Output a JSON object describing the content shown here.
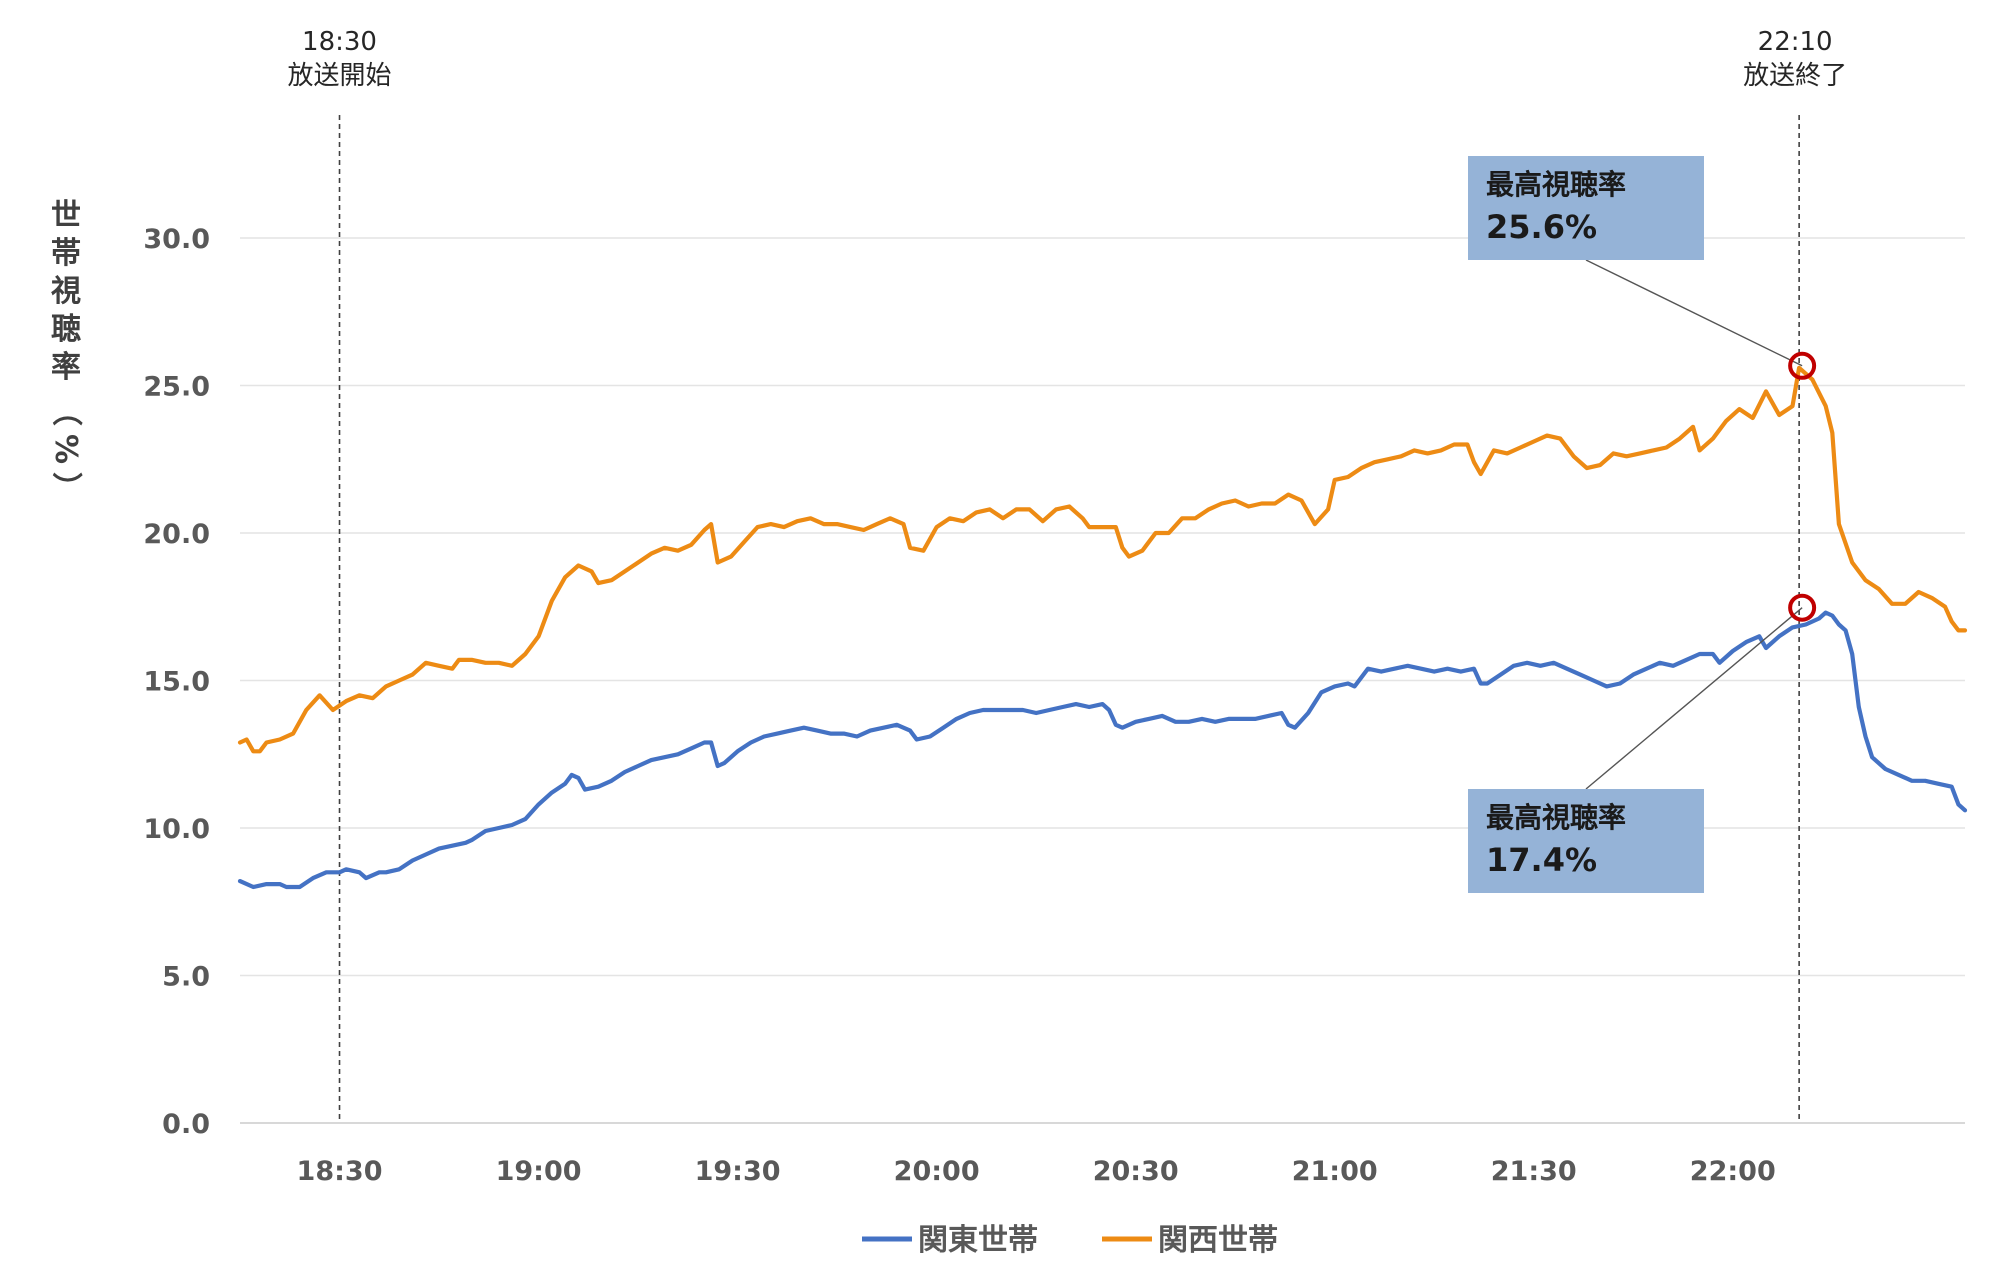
{
  "chart_data": {
    "type": "line",
    "ylabel_chars": [
      "世",
      "帯",
      "視",
      "聴",
      "率",
      "（",
      "%",
      "）"
    ],
    "ylim": [
      0,
      30
    ],
    "y_ticks": [
      "0.0",
      "5.0",
      "10.0",
      "15.0",
      "20.0",
      "25.0",
      "30.0"
    ],
    "x_range": [
      "18:15",
      "22:35"
    ],
    "x_ticks": [
      "18:30",
      "19:00",
      "19:30",
      "20:00",
      "20:30",
      "21:00",
      "21:30",
      "22:00"
    ],
    "grid": "horizontal",
    "legend_position": "bottom-center",
    "markers": [
      {
        "time": "18:30",
        "time_label": "18:30",
        "label": "放送開始"
      },
      {
        "time": "22:10",
        "time_label": "22:10",
        "label": "放送終了"
      }
    ],
    "series": [
      {
        "name": "関東世帯",
        "color": "#4472C4",
        "points": [
          [
            "18:15",
            8.2
          ],
          [
            "18:17",
            8.0
          ],
          [
            "18:19",
            8.1
          ],
          [
            "18:21",
            8.1
          ],
          [
            "18:22",
            8.0
          ],
          [
            "18:24",
            8.0
          ],
          [
            "18:26",
            8.3
          ],
          [
            "18:28",
            8.5
          ],
          [
            "18:30",
            8.5
          ],
          [
            "18:31",
            8.6
          ],
          [
            "18:33",
            8.5
          ],
          [
            "18:34",
            8.3
          ],
          [
            "18:36",
            8.5
          ],
          [
            "18:37",
            8.5
          ],
          [
            "18:39",
            8.6
          ],
          [
            "18:41",
            8.9
          ],
          [
            "18:43",
            9.1
          ],
          [
            "18:45",
            9.3
          ],
          [
            "18:47",
            9.4
          ],
          [
            "18:49",
            9.5
          ],
          [
            "18:50",
            9.6
          ],
          [
            "18:52",
            9.9
          ],
          [
            "18:54",
            10.0
          ],
          [
            "18:56",
            10.1
          ],
          [
            "18:58",
            10.3
          ],
          [
            "19:00",
            10.8
          ],
          [
            "19:02",
            11.2
          ],
          [
            "19:04",
            11.5
          ],
          [
            "19:05",
            11.8
          ],
          [
            "19:06",
            11.7
          ],
          [
            "19:07",
            11.3
          ],
          [
            "19:09",
            11.4
          ],
          [
            "19:11",
            11.6
          ],
          [
            "19:13",
            11.9
          ],
          [
            "19:15",
            12.1
          ],
          [
            "19:17",
            12.3
          ],
          [
            "19:19",
            12.4
          ],
          [
            "19:21",
            12.5
          ],
          [
            "19:23",
            12.7
          ],
          [
            "19:25",
            12.9
          ],
          [
            "19:26",
            12.9
          ],
          [
            "19:27",
            12.1
          ],
          [
            "19:28",
            12.2
          ],
          [
            "19:30",
            12.6
          ],
          [
            "19:32",
            12.9
          ],
          [
            "19:34",
            13.1
          ],
          [
            "19:36",
            13.2
          ],
          [
            "19:38",
            13.3
          ],
          [
            "19:40",
            13.4
          ],
          [
            "19:42",
            13.3
          ],
          [
            "19:44",
            13.2
          ],
          [
            "19:46",
            13.2
          ],
          [
            "19:48",
            13.1
          ],
          [
            "19:50",
            13.3
          ],
          [
            "19:52",
            13.4
          ],
          [
            "19:54",
            13.5
          ],
          [
            "19:56",
            13.3
          ],
          [
            "19:57",
            13.0
          ],
          [
            "19:59",
            13.1
          ],
          [
            "20:01",
            13.4
          ],
          [
            "20:03",
            13.7
          ],
          [
            "20:05",
            13.9
          ],
          [
            "20:07",
            14.0
          ],
          [
            "20:09",
            14.0
          ],
          [
            "20:11",
            14.0
          ],
          [
            "20:13",
            14.0
          ],
          [
            "20:15",
            13.9
          ],
          [
            "20:17",
            14.0
          ],
          [
            "20:19",
            14.1
          ],
          [
            "20:21",
            14.2
          ],
          [
            "20:23",
            14.1
          ],
          [
            "20:25",
            14.2
          ],
          [
            "20:26",
            14.0
          ],
          [
            "20:27",
            13.5
          ],
          [
            "20:28",
            13.4
          ],
          [
            "20:30",
            13.6
          ],
          [
            "20:32",
            13.7
          ],
          [
            "20:34",
            13.8
          ],
          [
            "20:36",
            13.6
          ],
          [
            "20:38",
            13.6
          ],
          [
            "20:40",
            13.7
          ],
          [
            "20:42",
            13.6
          ],
          [
            "20:44",
            13.7
          ],
          [
            "20:46",
            13.7
          ],
          [
            "20:48",
            13.7
          ],
          [
            "20:50",
            13.8
          ],
          [
            "20:52",
            13.9
          ],
          [
            "20:53",
            13.5
          ],
          [
            "20:54",
            13.4
          ],
          [
            "20:56",
            13.9
          ],
          [
            "20:58",
            14.6
          ],
          [
            "21:00",
            14.8
          ],
          [
            "21:02",
            14.9
          ],
          [
            "21:03",
            14.8
          ],
          [
            "21:05",
            15.4
          ],
          [
            "21:07",
            15.3
          ],
          [
            "21:09",
            15.4
          ],
          [
            "21:11",
            15.5
          ],
          [
            "21:13",
            15.4
          ],
          [
            "21:15",
            15.3
          ],
          [
            "21:17",
            15.4
          ],
          [
            "21:19",
            15.3
          ],
          [
            "21:21",
            15.4
          ],
          [
            "21:22",
            14.9
          ],
          [
            "21:23",
            14.9
          ],
          [
            "21:25",
            15.2
          ],
          [
            "21:27",
            15.5
          ],
          [
            "21:29",
            15.6
          ],
          [
            "21:31",
            15.5
          ],
          [
            "21:33",
            15.6
          ],
          [
            "21:35",
            15.4
          ],
          [
            "21:37",
            15.2
          ],
          [
            "21:39",
            15.0
          ],
          [
            "21:41",
            14.8
          ],
          [
            "21:43",
            14.9
          ],
          [
            "21:45",
            15.2
          ],
          [
            "21:47",
            15.4
          ],
          [
            "21:49",
            15.6
          ],
          [
            "21:51",
            15.5
          ],
          [
            "21:53",
            15.7
          ],
          [
            "21:55",
            15.9
          ],
          [
            "21:57",
            15.9
          ],
          [
            "21:58",
            15.6
          ],
          [
            "22:00",
            16.0
          ],
          [
            "22:02",
            16.3
          ],
          [
            "22:04",
            16.5
          ],
          [
            "22:05",
            16.1
          ],
          [
            "22:07",
            16.5
          ],
          [
            "22:09",
            16.8
          ],
          [
            "22:11",
            16.9
          ],
          [
            "22:13",
            17.1
          ],
          [
            "22:14",
            17.3
          ],
          [
            "22:15",
            17.2
          ],
          [
            "22:16",
            16.9
          ],
          [
            "22:17",
            16.7
          ],
          [
            "22:18",
            15.9
          ],
          [
            "22:19",
            14.1
          ],
          [
            "22:20",
            13.1
          ],
          [
            "22:21",
            12.4
          ],
          [
            "22:23",
            12.0
          ],
          [
            "22:25",
            11.8
          ],
          [
            "22:27",
            11.6
          ],
          [
            "22:29",
            11.6
          ],
          [
            "22:31",
            11.5
          ],
          [
            "22:33",
            11.4
          ],
          [
            "22:34",
            10.8
          ],
          [
            "22:35",
            10.6
          ]
        ]
      },
      {
        "name": "関西世帯",
        "color": "#ED8B14",
        "points": [
          [
            "18:15",
            12.9
          ],
          [
            "18:16",
            13.0
          ],
          [
            "18:17",
            12.6
          ],
          [
            "18:18",
            12.6
          ],
          [
            "18:19",
            12.9
          ],
          [
            "18:21",
            13.0
          ],
          [
            "18:23",
            13.2
          ],
          [
            "18:25",
            14.0
          ],
          [
            "18:27",
            14.5
          ],
          [
            "18:29",
            14.0
          ],
          [
            "18:31",
            14.3
          ],
          [
            "18:33",
            14.5
          ],
          [
            "18:35",
            14.4
          ],
          [
            "18:37",
            14.8
          ],
          [
            "18:39",
            15.0
          ],
          [
            "18:41",
            15.2
          ],
          [
            "18:43",
            15.6
          ],
          [
            "18:45",
            15.5
          ],
          [
            "18:47",
            15.4
          ],
          [
            "18:48",
            15.7
          ],
          [
            "18:50",
            15.7
          ],
          [
            "18:52",
            15.6
          ],
          [
            "18:54",
            15.6
          ],
          [
            "18:56",
            15.5
          ],
          [
            "18:58",
            15.9
          ],
          [
            "19:00",
            16.5
          ],
          [
            "19:02",
            17.7
          ],
          [
            "19:04",
            18.5
          ],
          [
            "19:06",
            18.9
          ],
          [
            "19:08",
            18.7
          ],
          [
            "19:09",
            18.3
          ],
          [
            "19:11",
            18.4
          ],
          [
            "19:13",
            18.7
          ],
          [
            "19:15",
            19.0
          ],
          [
            "19:17",
            19.3
          ],
          [
            "19:19",
            19.5
          ],
          [
            "19:21",
            19.4
          ],
          [
            "19:23",
            19.6
          ],
          [
            "19:25",
            20.1
          ],
          [
            "19:26",
            20.3
          ],
          [
            "19:27",
            19.0
          ],
          [
            "19:29",
            19.2
          ],
          [
            "19:31",
            19.7
          ],
          [
            "19:33",
            20.2
          ],
          [
            "19:35",
            20.3
          ],
          [
            "19:37",
            20.2
          ],
          [
            "19:39",
            20.4
          ],
          [
            "19:41",
            20.5
          ],
          [
            "19:43",
            20.3
          ],
          [
            "19:45",
            20.3
          ],
          [
            "19:47",
            20.2
          ],
          [
            "19:49",
            20.1
          ],
          [
            "19:51",
            20.3
          ],
          [
            "19:53",
            20.5
          ],
          [
            "19:55",
            20.3
          ],
          [
            "19:56",
            19.5
          ],
          [
            "19:58",
            19.4
          ],
          [
            "20:00",
            20.2
          ],
          [
            "20:02",
            20.5
          ],
          [
            "20:04",
            20.4
          ],
          [
            "20:06",
            20.7
          ],
          [
            "20:08",
            20.8
          ],
          [
            "20:10",
            20.5
          ],
          [
            "20:12",
            20.8
          ],
          [
            "20:14",
            20.8
          ],
          [
            "20:16",
            20.4
          ],
          [
            "20:18",
            20.8
          ],
          [
            "20:20",
            20.9
          ],
          [
            "20:22",
            20.5
          ],
          [
            "20:23",
            20.2
          ],
          [
            "20:25",
            20.2
          ],
          [
            "20:27",
            20.2
          ],
          [
            "20:28",
            19.5
          ],
          [
            "20:29",
            19.2
          ],
          [
            "20:31",
            19.4
          ],
          [
            "20:33",
            20.0
          ],
          [
            "20:35",
            20.0
          ],
          [
            "20:37",
            20.5
          ],
          [
            "20:39",
            20.5
          ],
          [
            "20:41",
            20.8
          ],
          [
            "20:43",
            21.0
          ],
          [
            "20:45",
            21.1
          ],
          [
            "20:47",
            20.9
          ],
          [
            "20:49",
            21.0
          ],
          [
            "20:51",
            21.0
          ],
          [
            "20:53",
            21.3
          ],
          [
            "20:55",
            21.1
          ],
          [
            "20:57",
            20.3
          ],
          [
            "20:59",
            20.8
          ],
          [
            "21:00",
            21.8
          ],
          [
            "21:02",
            21.9
          ],
          [
            "21:04",
            22.2
          ],
          [
            "21:06",
            22.4
          ],
          [
            "21:08",
            22.5
          ],
          [
            "21:10",
            22.6
          ],
          [
            "21:12",
            22.8
          ],
          [
            "21:14",
            22.7
          ],
          [
            "21:16",
            22.8
          ],
          [
            "21:18",
            23.0
          ],
          [
            "21:20",
            23.0
          ],
          [
            "21:21",
            22.4
          ],
          [
            "21:22",
            22.0
          ],
          [
            "21:24",
            22.8
          ],
          [
            "21:26",
            22.7
          ],
          [
            "21:28",
            22.9
          ],
          [
            "21:30",
            23.1
          ],
          [
            "21:32",
            23.3
          ],
          [
            "21:34",
            23.2
          ],
          [
            "21:36",
            22.6
          ],
          [
            "21:38",
            22.2
          ],
          [
            "21:40",
            22.3
          ],
          [
            "21:42",
            22.7
          ],
          [
            "21:44",
            22.6
          ],
          [
            "21:46",
            22.7
          ],
          [
            "21:48",
            22.8
          ],
          [
            "21:50",
            22.9
          ],
          [
            "21:52",
            23.2
          ],
          [
            "21:54",
            23.6
          ],
          [
            "21:55",
            22.8
          ],
          [
            "21:57",
            23.2
          ],
          [
            "21:59",
            23.8
          ],
          [
            "22:01",
            24.2
          ],
          [
            "22:03",
            23.9
          ],
          [
            "22:05",
            24.8
          ],
          [
            "22:07",
            24.0
          ],
          [
            "22:09",
            24.3
          ],
          [
            "22:10",
            25.6
          ],
          [
            "22:12",
            25.2
          ],
          [
            "22:14",
            24.3
          ],
          [
            "22:15",
            23.4
          ],
          [
            "22:16",
            20.3
          ],
          [
            "22:18",
            19.0
          ],
          [
            "22:20",
            18.4
          ],
          [
            "22:22",
            18.1
          ],
          [
            "22:24",
            17.6
          ],
          [
            "22:26",
            17.6
          ],
          [
            "22:28",
            18.0
          ],
          [
            "22:30",
            17.8
          ],
          [
            "22:32",
            17.5
          ],
          [
            "22:33",
            17.0
          ],
          [
            "22:34",
            16.7
          ],
          [
            "22:35",
            16.7
          ]
        ]
      }
    ],
    "callouts": [
      {
        "series": "関西世帯",
        "title": "最高視聴率",
        "value_label": "25.6%",
        "peak_time": "22:10",
        "peak_value": 25.6
      },
      {
        "series": "関東世帯",
        "title": "最高視聴率",
        "value_label": "17.4%",
        "peak_time": "22:10",
        "peak_value": 17.4
      }
    ],
    "callout_style": {
      "fill": "#95B3D7",
      "circle_color": "#C00000"
    }
  }
}
